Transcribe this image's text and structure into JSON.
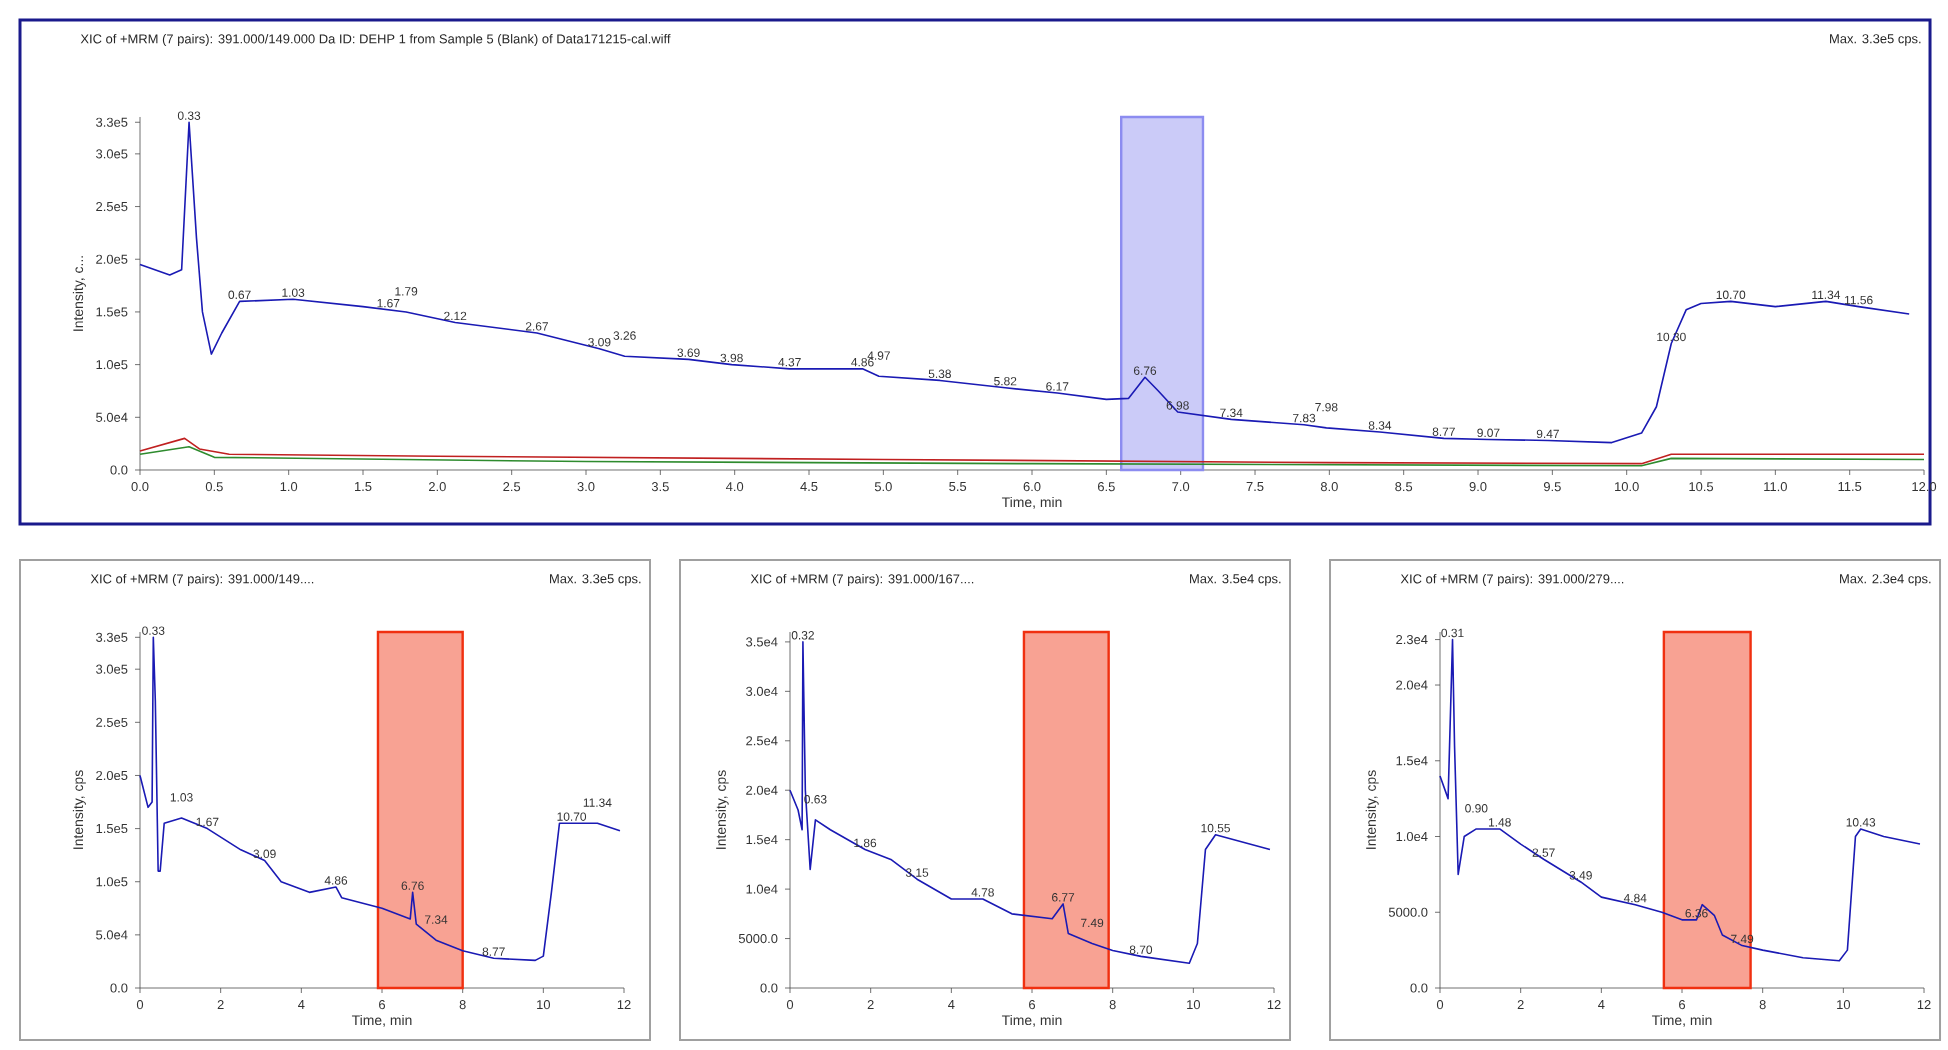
{
  "chart_data": [
    {
      "type": "line",
      "title": "XIC of +MRM (7 pairs): 391.000/149.000 Da ID: DEHP 1 from Sample 5 (Blank) of Data171215-cal.wiff",
      "subtitle": "Max. 3.3e5 cps.",
      "xlabel": "Time, min",
      "ylabel": "Intensity, c...",
      "marker": "none",
      "xlim": [
        0,
        12
      ],
      "ylim": [
        0,
        335000
      ],
      "xticks": [
        {
          "value": 0,
          "label": "0.0"
        },
        {
          "value": 0.5,
          "label": "0.5"
        },
        {
          "value": 1,
          "label": "1.0"
        },
        {
          "value": 1.5,
          "label": "1.5"
        },
        {
          "value": 2,
          "label": "2.0"
        },
        {
          "value": 2.5,
          "label": "2.5"
        },
        {
          "value": 3,
          "label": "3.0"
        },
        {
          "value": 3.5,
          "label": "3.5"
        },
        {
          "value": 4,
          "label": "4.0"
        },
        {
          "value": 4.5,
          "label": "4.5"
        },
        {
          "value": 5,
          "label": "5.0"
        },
        {
          "value": 5.5,
          "label": "5.5"
        },
        {
          "value": 6,
          "label": "6.0"
        },
        {
          "value": 6.5,
          "label": "6.5"
        },
        {
          "value": 7,
          "label": "7.0"
        },
        {
          "value": 7.5,
          "label": "7.5"
        },
        {
          "value": 8,
          "label": "8.0"
        },
        {
          "value": 8.5,
          "label": "8.5"
        },
        {
          "value": 9,
          "label": "9.0"
        },
        {
          "value": 9.5,
          "label": "9.5"
        },
        {
          "value": 10,
          "label": "10.0"
        },
        {
          "value": 10.5,
          "label": "10.5"
        },
        {
          "value": 11,
          "label": "11.0"
        },
        {
          "value": 11.5,
          "label": "11.5"
        },
        {
          "value": 12,
          "label": "12.0"
        }
      ],
      "yticks": [
        {
          "value": 0,
          "label": "0.0"
        },
        {
          "value": 50000,
          "label": "5.0e4"
        },
        {
          "value": 100000,
          "label": "1.0e5"
        },
        {
          "value": 150000,
          "label": "1.5e5"
        },
        {
          "value": 200000,
          "label": "2.0e5"
        },
        {
          "value": 250000,
          "label": "2.5e5"
        },
        {
          "value": 300000,
          "label": "3.0e5"
        },
        {
          "value": 330000,
          "label": "3.3e5"
        }
      ],
      "bands": [
        {
          "axis": "x",
          "from": 6.6,
          "to": 7.15,
          "color": "#8c8cf0"
        }
      ],
      "series": [
        {
          "color": "#c02020",
          "x": [
            0,
            0.3,
            0.4,
            0.6,
            2,
            5,
            8,
            10.1,
            10.3,
            12
          ],
          "values": [
            18000,
            30000,
            20000,
            15000,
            13000,
            10000,
            7000,
            6000,
            15000,
            15000
          ]
        },
        {
          "color": "#2e8b2e",
          "x": [
            0,
            0.33,
            0.5,
            3,
            6,
            10.1,
            10.3,
            12
          ],
          "values": [
            15000,
            22000,
            12000,
            8000,
            6000,
            4000,
            11000,
            10000
          ]
        },
        {
          "color": "#1a1ab4",
          "x": [
            0,
            0.2,
            0.28,
            0.33,
            0.38,
            0.42,
            0.48,
            0.55,
            0.67,
            1.03,
            1.5,
            1.79,
            2.12,
            2.67,
            3.09,
            3.26,
            3.69,
            3.98,
            4.37,
            4.86,
            4.97,
            5.38,
            5.82,
            6.17,
            6.5,
            6.65,
            6.76,
            6.85,
            6.98,
            7.34,
            7.83,
            7.98,
            8.34,
            8.77,
            9.07,
            9.47,
            9.9,
            10.1,
            10.2,
            10.3,
            10.4,
            10.5,
            10.7,
            11.0,
            11.34,
            11.56,
            11.9
          ],
          "values": [
            195000,
            185000,
            190000,
            330000,
            220000,
            150000,
            110000,
            130000,
            160000,
            162000,
            155000,
            150000,
            140000,
            130000,
            115000,
            108000,
            105000,
            100000,
            96000,
            96000,
            89000,
            85000,
            78000,
            73000,
            67000,
            68000,
            88000,
            75000,
            55000,
            48000,
            43000,
            40000,
            36000,
            30000,
            29000,
            28000,
            26000,
            35000,
            60000,
            120000,
            152000,
            158000,
            160000,
            155000,
            160000,
            155000,
            148000
          ]
        }
      ],
      "annotations": [
        {
          "text": "0.33",
          "x": 0.33,
          "y": 330000
        },
        {
          "text": "0.67",
          "x": 0.67,
          "y": 160000
        },
        {
          "text": "1.03",
          "x": 1.03,
          "y": 162000
        },
        {
          "text": "1.67",
          "x": 1.67,
          "y": 152000
        },
        {
          "text": "1.79",
          "x": 1.79,
          "y": 150000
        },
        {
          "text": "2.12",
          "x": 2.12,
          "y": 140000
        },
        {
          "text": "2.67",
          "x": 2.67,
          "y": 130000
        },
        {
          "text": "3.09",
          "x": 3.09,
          "y": 115000
        },
        {
          "text": "3.26",
          "x": 3.26,
          "y": 108000
        },
        {
          "text": "3.69",
          "x": 3.69,
          "y": 105000
        },
        {
          "text": "3.98",
          "x": 3.98,
          "y": 100000
        },
        {
          "text": "4.37",
          "x": 4.37,
          "y": 96000
        },
        {
          "text": "4.86",
          "x": 4.86,
          "y": 96000
        },
        {
          "text": "4.97",
          "x": 4.97,
          "y": 89000
        },
        {
          "text": "5.38",
          "x": 5.38,
          "y": 85000
        },
        {
          "text": "5.82",
          "x": 5.82,
          "y": 78000
        },
        {
          "text": "6.17",
          "x": 6.17,
          "y": 73000
        },
        {
          "text": "6.76",
          "x": 6.76,
          "y": 88000
        },
        {
          "text": "6.98",
          "x": 6.98,
          "y": 55000
        },
        {
          "text": "7.34",
          "x": 7.34,
          "y": 48000
        },
        {
          "text": "7.83",
          "x": 7.83,
          "y": 43000
        },
        {
          "text": "7.98",
          "x": 7.98,
          "y": 40000
        },
        {
          "text": "8.34",
          "x": 8.34,
          "y": 36000
        },
        {
          "text": "8.77",
          "x": 8.77,
          "y": 30000
        },
        {
          "text": "9.07",
          "x": 9.07,
          "y": 29000
        },
        {
          "text": "9.47",
          "x": 9.47,
          "y": 28000
        },
        {
          "text": "10.30",
          "x": 10.3,
          "y": 120000
        },
        {
          "text": "10.70",
          "x": 10.7,
          "y": 160000
        },
        {
          "text": "11.34",
          "x": 11.34,
          "y": 160000
        },
        {
          "text": "11.56",
          "x": 11.56,
          "y": 155000
        }
      ]
    },
    {
      "type": "line",
      "title": "XIC of +MRM (7 pairs): 391.000/149....",
      "subtitle": "Max. 3.3e5 cps.",
      "xlabel": "Time, min",
      "ylabel": "Intensity, cps",
      "marker": "none",
      "xlim": [
        0,
        12
      ],
      "ylim": [
        0,
        335000
      ],
      "xticks": [
        0,
        2,
        4,
        6,
        8,
        10,
        12
      ],
      "yticks": [
        {
          "value": 0,
          "label": "0.0"
        },
        {
          "value": 50000,
          "label": "5.0e4"
        },
        {
          "value": 100000,
          "label": "1.0e5"
        },
        {
          "value": 150000,
          "label": "1.5e5"
        },
        {
          "value": 200000,
          "label": "2.0e5"
        },
        {
          "value": 250000,
          "label": "2.5e5"
        },
        {
          "value": 300000,
          "label": "3.0e5"
        },
        {
          "value": 330000,
          "label": "3.3e5"
        }
      ],
      "bands": [
        {
          "axis": "x",
          "from": 5.9,
          "to": 8.0,
          "color": "#f03010"
        }
      ],
      "series": [
        {
          "color": "#1a1ab4",
          "x": [
            0,
            0.2,
            0.3,
            0.33,
            0.38,
            0.45,
            0.5,
            0.6,
            1.03,
            1.67,
            2.5,
            3.09,
            3.5,
            4.2,
            4.86,
            5.0,
            6.0,
            6.7,
            6.76,
            6.85,
            7.34,
            8.0,
            8.77,
            9.8,
            10.0,
            10.2,
            10.4,
            10.7,
            11.34,
            11.9
          ],
          "values": [
            200000,
            170000,
            175000,
            330000,
            270000,
            110000,
            110000,
            155000,
            160000,
            150000,
            130000,
            120000,
            100000,
            90000,
            95000,
            85000,
            75000,
            65000,
            90000,
            60000,
            45000,
            35000,
            28000,
            26000,
            30000,
            90000,
            155000,
            155000,
            155000,
            148000
          ]
        }
      ],
      "annotations": [
        {
          "text": "0.33",
          "x": 0.33,
          "y": 330000
        },
        {
          "text": "1.03",
          "x": 1.03,
          "y": 160000
        },
        {
          "text": "1.67",
          "x": 1.67,
          "y": 150000
        },
        {
          "text": "3.09",
          "x": 3.09,
          "y": 120000
        },
        {
          "text": "4.86",
          "x": 4.86,
          "y": 95000
        },
        {
          "text": "6.76",
          "x": 6.76,
          "y": 90000
        },
        {
          "text": "7.34",
          "x": 7.34,
          "y": 45000
        },
        {
          "text": "8.77",
          "x": 8.77,
          "y": 28000
        },
        {
          "text": "10.70",
          "x": 10.7,
          "y": 155000
        },
        {
          "text": "11.34",
          "x": 11.34,
          "y": 155000
        }
      ]
    },
    {
      "type": "line",
      "title": "XIC of +MRM (7 pairs): 391.000/167....",
      "subtitle": "Max. 3.5e4 cps.",
      "xlabel": "Time, min",
      "ylabel": "Intensity, cps",
      "marker": "none",
      "xlim": [
        0,
        12
      ],
      "ylim": [
        0,
        36000
      ],
      "xticks": [
        0,
        2,
        4,
        6,
        8,
        10,
        12
      ],
      "yticks": [
        {
          "value": 0,
          "label": "0.0"
        },
        {
          "value": 5000,
          "label": "5000.0"
        },
        {
          "value": 10000,
          "label": "1.0e4"
        },
        {
          "value": 15000,
          "label": "1.5e4"
        },
        {
          "value": 20000,
          "label": "2.0e4"
        },
        {
          "value": 25000,
          "label": "2.5e4"
        },
        {
          "value": 30000,
          "label": "3.0e4"
        },
        {
          "value": 35000,
          "label": "3.5e4"
        }
      ],
      "bands": [
        {
          "axis": "x",
          "from": 5.8,
          "to": 7.9,
          "color": "#f03010"
        }
      ],
      "series": [
        {
          "color": "#1a1ab4",
          "x": [
            0,
            0.2,
            0.3,
            0.32,
            0.38,
            0.5,
            0.63,
            1.0,
            1.86,
            2.5,
            3.15,
            4.0,
            4.78,
            5.5,
            6.5,
            6.77,
            6.9,
            7.49,
            8.0,
            8.7,
            9.9,
            10.1,
            10.3,
            10.55,
            11.0,
            11.9
          ],
          "values": [
            20000,
            18000,
            16000,
            35000,
            20000,
            12000,
            17000,
            16000,
            14000,
            13000,
            11000,
            9000,
            9000,
            7500,
            7000,
            8500,
            5500,
            4500,
            3800,
            3200,
            2500,
            4500,
            14000,
            15500,
            15000,
            14000
          ]
        }
      ],
      "annotations": [
        {
          "text": "0.32",
          "x": 0.32,
          "y": 35000
        },
        {
          "text": "0.63",
          "x": 0.63,
          "y": 17000
        },
        {
          "text": "1.86",
          "x": 1.86,
          "y": 14000
        },
        {
          "text": "3.15",
          "x": 3.15,
          "y": 11000
        },
        {
          "text": "4.78",
          "x": 4.78,
          "y": 9000
        },
        {
          "text": "6.77",
          "x": 6.77,
          "y": 8500
        },
        {
          "text": "7.49",
          "x": 7.49,
          "y": 4500
        },
        {
          "text": "8.70",
          "x": 8.7,
          "y": 3200
        },
        {
          "text": "10.55",
          "x": 10.55,
          "y": 15500
        }
      ]
    },
    {
      "type": "line",
      "title": "XIC of +MRM (7 pairs): 391.000/279....",
      "subtitle": "Max. 2.3e4 cps.",
      "xlabel": "Time, min",
      "ylabel": "Intensity, cps",
      "marker": "none",
      "xlim": [
        0,
        12
      ],
      "ylim": [
        0,
        23500
      ],
      "xticks": [
        0,
        2,
        4,
        6,
        8,
        10,
        12
      ],
      "yticks": [
        {
          "value": 0,
          "label": "0.0"
        },
        {
          "value": 5000,
          "label": "5000.0"
        },
        {
          "value": 10000,
          "label": "1.0e4"
        },
        {
          "value": 15000,
          "label": "1.5e4"
        },
        {
          "value": 20000,
          "label": "2.0e4"
        },
        {
          "value": 23000,
          "label": "2.3e4"
        }
      ],
      "bands": [
        {
          "axis": "x",
          "from": 5.55,
          "to": 7.7,
          "color": "#f03010"
        }
      ],
      "series": [
        {
          "color": "#1a1ab4",
          "x": [
            0,
            0.2,
            0.31,
            0.36,
            0.45,
            0.6,
            0.9,
            1.48,
            2.0,
            2.57,
            3.49,
            4.0,
            4.84,
            5.5,
            6.0,
            6.36,
            6.5,
            6.8,
            7.0,
            7.49,
            8.0,
            9.0,
            9.9,
            10.1,
            10.3,
            10.43,
            11.0,
            11.9
          ],
          "values": [
            14000,
            12500,
            23000,
            16000,
            7500,
            10000,
            10500,
            10500,
            9500,
            8500,
            7000,
            6000,
            5500,
            5000,
            4500,
            4500,
            5500,
            4800,
            3500,
            2800,
            2500,
            2000,
            1800,
            2500,
            10000,
            10500,
            10000,
            9500
          ]
        }
      ],
      "annotations": [
        {
          "text": "0.31",
          "x": 0.31,
          "y": 23000
        },
        {
          "text": "0.90",
          "x": 0.9,
          "y": 10500
        },
        {
          "text": "1.48",
          "x": 1.48,
          "y": 10500
        },
        {
          "text": "2.57",
          "x": 2.57,
          "y": 8500
        },
        {
          "text": "3.49",
          "x": 3.49,
          "y": 7000
        },
        {
          "text": "4.84",
          "x": 4.84,
          "y": 5500
        },
        {
          "text": "6.36",
          "x": 6.36,
          "y": 4500
        },
        {
          "text": "7.49",
          "x": 7.49,
          "y": 2800
        },
        {
          "text": "10.43",
          "x": 10.43,
          "y": 10500
        }
      ]
    }
  ]
}
